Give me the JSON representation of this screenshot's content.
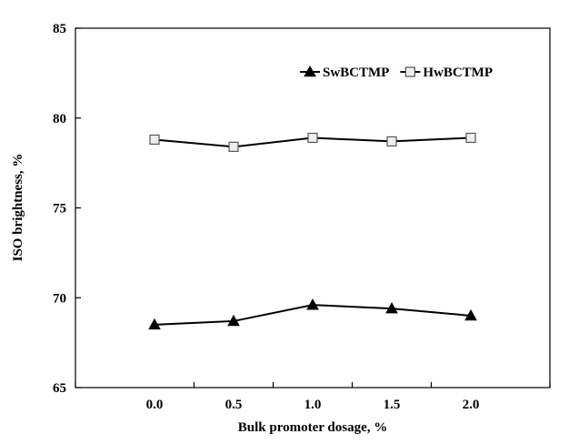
{
  "chart_data": {
    "type": "line",
    "xlabel": "Bulk promoter dosage, %",
    "ylabel": "ISO brightness, %",
    "x": [
      0.0,
      0.5,
      1.0,
      1.5,
      2.0
    ],
    "x_tick_labels": [
      "0.0",
      "0.5",
      "1.0",
      "1.5",
      "2.0"
    ],
    "xlim": [
      -0.5,
      2.5
    ],
    "ylim": [
      65,
      85
    ],
    "y_ticks": [
      65,
      70,
      75,
      80,
      85
    ],
    "grid": false,
    "legend_position": "top-right",
    "series": [
      {
        "name": "SwBCTMP",
        "marker": "filled-triangle",
        "color": "#000000",
        "values": [
          68.5,
          68.7,
          69.6,
          69.4,
          69.0
        ]
      },
      {
        "name": "HwBCTMP",
        "marker": "open-square",
        "color": "#000000",
        "values": [
          78.8,
          78.4,
          78.9,
          78.7,
          78.9
        ]
      }
    ]
  }
}
